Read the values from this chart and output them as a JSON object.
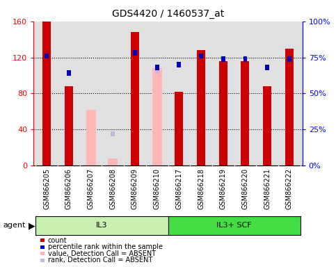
{
  "title": "GDS4420 / 1460537_at",
  "categories": [
    "GSM866205",
    "GSM866206",
    "GSM866207",
    "GSM866208",
    "GSM866209",
    "GSM866210",
    "GSM866217",
    "GSM866218",
    "GSM866219",
    "GSM866220",
    "GSM866221",
    "GSM866222"
  ],
  "groups": [
    {
      "label": "IL3",
      "indices": [
        0,
        5
      ],
      "color": "#c8f0b0"
    },
    {
      "label": "IL3+ SCF",
      "indices": [
        6,
        11
      ],
      "color": "#44dd44"
    }
  ],
  "red_values": [
    160,
    88,
    null,
    null,
    148,
    null,
    82,
    128,
    116,
    116,
    88,
    130
  ],
  "blue_values": [
    76,
    64,
    null,
    null,
    78,
    68,
    70,
    76,
    74,
    74,
    68,
    74
  ],
  "pink_values": [
    null,
    null,
    62,
    8,
    null,
    108,
    null,
    null,
    null,
    null,
    null,
    null
  ],
  "lavender_values": [
    null,
    null,
    null,
    22,
    null,
    66,
    null,
    null,
    null,
    null,
    null,
    null
  ],
  "ylim_left": [
    0,
    160
  ],
  "ylim_right": [
    0,
    100
  ],
  "yticks_left": [
    0,
    40,
    80,
    120,
    160
  ],
  "ytick_labels_left": [
    "0",
    "40",
    "80",
    "120",
    "160"
  ],
  "yticks_right": [
    0,
    25,
    50,
    75,
    100
  ],
  "ytick_labels_right": [
    "0%",
    "25%",
    "50%",
    "75%",
    "100%"
  ],
  "legend_items": [
    {
      "label": "count",
      "color": "#cc0000"
    },
    {
      "label": "percentile rank within the sample",
      "color": "#0000cc"
    },
    {
      "label": "value, Detection Call = ABSENT",
      "color": "#ffb6b6"
    },
    {
      "label": "rank, Detection Call = ABSENT",
      "color": "#c0b8e0"
    }
  ],
  "bar_color_red": "#cc0000",
  "bar_color_blue": "#0000bb",
  "bar_color_pink": "#ffb6b6",
  "bar_color_lavender": "#c0b8e0",
  "agent_label": "agent",
  "axis_bg": "#e0e0e0"
}
